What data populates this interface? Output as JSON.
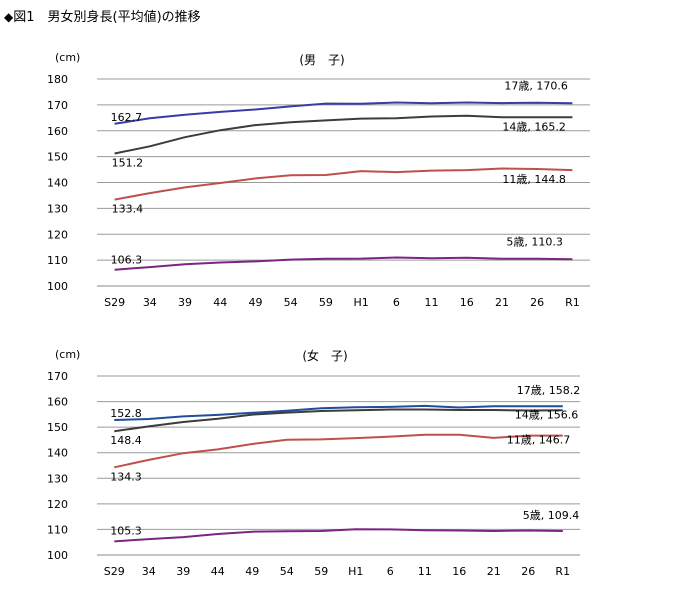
{
  "figure": {
    "marker": "◆",
    "title": "図1　男女別身長(平均値)の推移"
  },
  "chart_data": [
    {
      "type": "line",
      "title": "(男　子)",
      "ylabel": "(cm)",
      "categories": [
        "S29",
        "34",
        "39",
        "44",
        "49",
        "54",
        "59",
        "H1",
        "6",
        "11",
        "16",
        "21",
        "26",
        "R1"
      ],
      "ylim": [
        100,
        180
      ],
      "yticks": [
        100,
        110,
        120,
        130,
        140,
        150,
        160,
        170,
        180
      ],
      "grid": true,
      "series": [
        {
          "color": "#3a3aa8",
          "values": [
            162.7,
            164.8,
            166.2,
            167.3,
            168.2,
            169.4,
            170.5,
            170.4,
            170.9,
            170.6,
            170.9,
            170.7,
            170.8,
            170.6
          ],
          "labels": {
            "start": "162.7",
            "end": "17歳, 170.6"
          }
        },
        {
          "color": "#3c3c3c",
          "values": [
            151.2,
            154.0,
            157.5,
            160.2,
            162.2,
            163.3,
            164.0,
            164.7,
            164.8,
            165.5,
            165.8,
            165.2,
            165.2,
            165.2
          ],
          "labels": {
            "start": "151.2",
            "end": "14歳, 165.2"
          }
        },
        {
          "color": "#c0504d",
          "values": [
            133.4,
            135.9,
            138.1,
            139.8,
            141.6,
            142.8,
            142.9,
            144.4,
            144.0,
            144.6,
            144.8,
            145.4,
            145.2,
            144.8
          ],
          "labels": {
            "start": "133.4",
            "end": "11歳, 144.8"
          }
        },
        {
          "color": "#7b2583",
          "values": [
            106.3,
            107.3,
            108.4,
            109.1,
            109.5,
            110.2,
            110.5,
            110.6,
            111.0,
            110.7,
            110.9,
            110.5,
            110.5,
            110.3
          ],
          "labels": {
            "start": "106.3",
            "end": "5歳, 110.3"
          }
        }
      ]
    },
    {
      "type": "line",
      "title": "(女　子)",
      "ylabel": "(cm)",
      "categories": [
        "S29",
        "34",
        "39",
        "44",
        "49",
        "54",
        "59",
        "H1",
        "6",
        "11",
        "16",
        "21",
        "26",
        "R1"
      ],
      "ylim": [
        100,
        170
      ],
      "yticks": [
        100,
        110,
        120,
        130,
        140,
        150,
        160,
        170
      ],
      "grid": true,
      "series": [
        {
          "color": "#1f4e9a",
          "values": [
            152.8,
            153.2,
            154.2,
            154.8,
            155.6,
            156.4,
            157.4,
            157.8,
            157.9,
            158.3,
            157.7,
            158.2,
            158.2,
            158.2
          ],
          "labels": {
            "start": "152.8",
            "end": "17歳, 158.2"
          }
        },
        {
          "color": "#3c3c3c",
          "values": [
            148.4,
            150.3,
            152.0,
            153.3,
            154.9,
            155.7,
            156.3,
            156.6,
            156.9,
            156.9,
            156.7,
            156.7,
            156.5,
            156.6
          ],
          "labels": {
            "start": "148.4",
            "end": "14歳, 156.6"
          }
        },
        {
          "color": "#c0504d",
          "values": [
            134.3,
            137.2,
            139.8,
            141.3,
            143.4,
            145.1,
            145.2,
            145.7,
            146.3,
            147.0,
            147.0,
            145.8,
            146.7,
            146.7
          ],
          "labels": {
            "start": "134.3",
            "end": "11歳, 146.7"
          }
        },
        {
          "color": "#7b2583",
          "values": [
            105.3,
            106.2,
            107.0,
            108.2,
            109.1,
            109.3,
            109.4,
            110.1,
            110.0,
            109.7,
            109.6,
            109.4,
            109.6,
            109.4
          ],
          "labels": {
            "start": "105.3",
            "end": "5歳, 109.4"
          }
        }
      ]
    }
  ]
}
